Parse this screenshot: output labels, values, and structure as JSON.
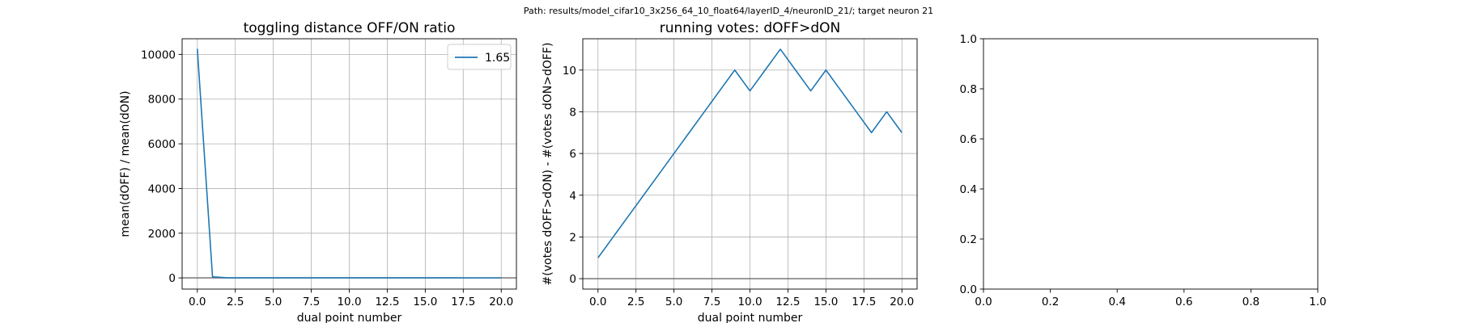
{
  "figure": {
    "suptitle": "Path: results/model_cifar10_3x256_64_10_float64/layerID_4/neuronID_21/; target neuron 21"
  },
  "chart_data": [
    {
      "type": "line",
      "title": "toggling distance OFF/ON ratio",
      "xlabel": "dual point number",
      "ylabel": "mean(dOFF) / mean(dON)",
      "xlim": [
        -1,
        21
      ],
      "ylim": [
        -500,
        10700
      ],
      "xticks": [
        0,
        2.5,
        5,
        7.5,
        10,
        12.5,
        15,
        17.5,
        20
      ],
      "xtick_labels": [
        "0.0",
        "2.5",
        "5.0",
        "7.5",
        "10.0",
        "12.5",
        "15.0",
        "17.5",
        "20.0"
      ],
      "yticks": [
        0,
        2000,
        4000,
        6000,
        8000,
        10000
      ],
      "ytick_labels": [
        "0",
        "2000",
        "4000",
        "6000",
        "8000",
        "10000"
      ],
      "grid": true,
      "hline": 0,
      "legend": "top-right",
      "series": [
        {
          "name": "1.65",
          "color": "#1f77b4",
          "x": [
            0,
            1,
            2,
            3,
            4,
            5,
            6,
            7,
            8,
            9,
            10,
            11,
            12,
            13,
            14,
            15,
            16,
            17,
            18,
            19,
            20
          ],
          "y": [
            10250,
            50,
            3,
            2.5,
            2.2,
            2.0,
            1.9,
            1.9,
            1.8,
            1.8,
            1.8,
            1.7,
            1.7,
            1.7,
            1.7,
            1.7,
            1.7,
            1.7,
            1.65,
            1.65,
            1.65
          ]
        }
      ]
    },
    {
      "type": "line",
      "title": "running votes: dOFF>dON",
      "xlabel": "dual point number",
      "ylabel": "#(votes dOFF>dON) - #(votes dON>dOFF)",
      "xlim": [
        -1,
        21
      ],
      "ylim": [
        -0.5,
        11.5
      ],
      "xticks": [
        0,
        2.5,
        5,
        7.5,
        10,
        12.5,
        15,
        17.5,
        20
      ],
      "xtick_labels": [
        "0.0",
        "2.5",
        "5.0",
        "7.5",
        "10.0",
        "12.5",
        "15.0",
        "17.5",
        "20.0"
      ],
      "yticks": [
        0,
        2,
        4,
        6,
        8,
        10
      ],
      "ytick_labels": [
        "0",
        "2",
        "4",
        "6",
        "8",
        "10"
      ],
      "grid": true,
      "hline": 0,
      "legend": "none",
      "series": [
        {
          "color": "#1f77b4",
          "x": [
            0,
            1,
            2,
            3,
            4,
            5,
            6,
            7,
            8,
            9,
            10,
            11,
            12,
            13,
            14,
            15,
            16,
            17,
            18,
            19,
            20
          ],
          "y": [
            1,
            2,
            3,
            4,
            5,
            6,
            7,
            8,
            9,
            10,
            9,
            10,
            11,
            10,
            9,
            10,
            9,
            8,
            7,
            8,
            7
          ]
        }
      ]
    },
    {
      "type": "line",
      "title": "",
      "xlabel": "",
      "ylabel": "",
      "xlim": [
        0,
        1
      ],
      "ylim": [
        0,
        1
      ],
      "xticks": [
        0,
        0.2,
        0.4,
        0.6,
        0.8,
        1.0
      ],
      "xtick_labels": [
        "0.0",
        "0.2",
        "0.4",
        "0.6",
        "0.8",
        "1.0"
      ],
      "yticks": [
        0,
        0.2,
        0.4,
        0.6,
        0.8,
        1.0
      ],
      "ytick_labels": [
        "0.0",
        "0.2",
        "0.4",
        "0.6",
        "0.8",
        "1.0"
      ],
      "grid": false,
      "legend": "none",
      "series": []
    }
  ]
}
